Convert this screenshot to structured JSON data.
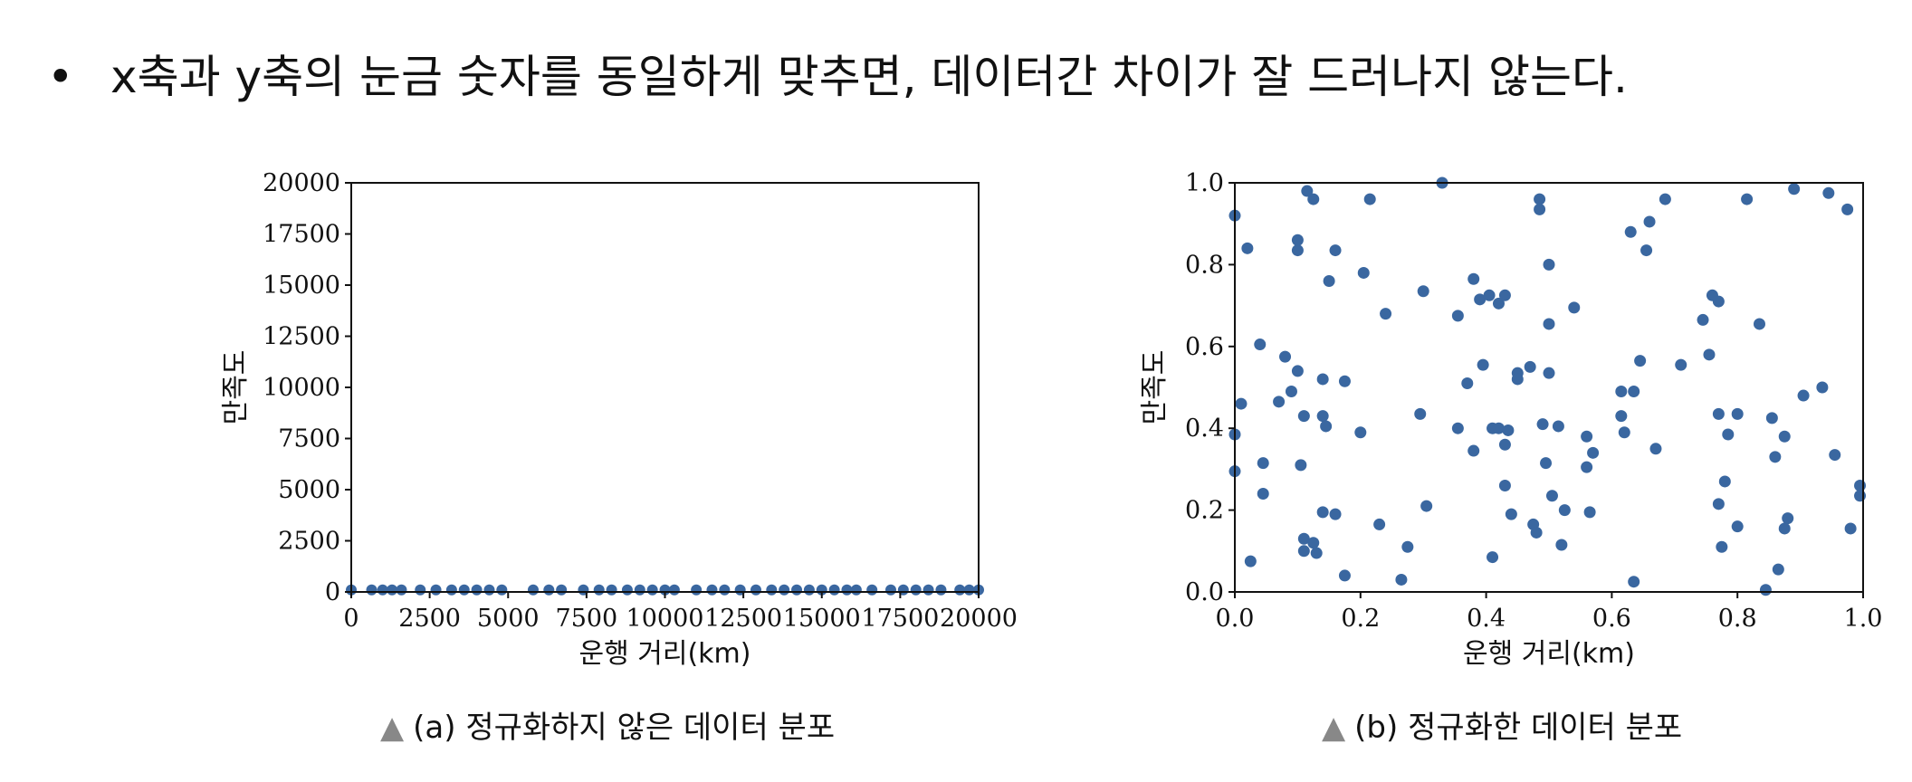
{
  "slide": {
    "bullet_symbol": "•",
    "bullet_text": "x축과 y축의 눈금 숫자를 동일하게 맞추면, 데이터간 차이가 잘 드러나지 않는다."
  },
  "captions": {
    "marker": "▲",
    "left": "(a) 정규화하지 않은 데이터 분포",
    "right": "(b) 정규화한 데이터 분포"
  },
  "colors": {
    "marker": "#3a67a0",
    "axis": "#111111"
  },
  "chart_data": [
    {
      "type": "scatter",
      "title": "",
      "xlabel": "운행 거리(km)",
      "ylabel": "만족도",
      "xlim": [
        0,
        20000
      ],
      "ylim": [
        0,
        20000
      ],
      "xticks": [
        "0",
        "2500",
        "5000",
        "7500",
        "10000",
        "12500",
        "15000",
        "17500",
        "20000"
      ],
      "yticks": [
        "0",
        "2500",
        "5000",
        "7500",
        "10000",
        "12500",
        "15000",
        "17500",
        "20000"
      ],
      "points": [
        [
          0,
          100
        ],
        [
          650,
          100
        ],
        [
          1000,
          100
        ],
        [
          1300,
          100
        ],
        [
          1600,
          100
        ],
        [
          2200,
          100
        ],
        [
          2700,
          100
        ],
        [
          3200,
          100
        ],
        [
          3600,
          100
        ],
        [
          4000,
          100
        ],
        [
          4400,
          100
        ],
        [
          4800,
          100
        ],
        [
          5800,
          100
        ],
        [
          6300,
          100
        ],
        [
          6700,
          100
        ],
        [
          7400,
          100
        ],
        [
          7900,
          100
        ],
        [
          8300,
          100
        ],
        [
          8800,
          100
        ],
        [
          9200,
          100
        ],
        [
          9600,
          100
        ],
        [
          10000,
          100
        ],
        [
          10300,
          100
        ],
        [
          11000,
          100
        ],
        [
          11500,
          100
        ],
        [
          11900,
          100
        ],
        [
          12400,
          100
        ],
        [
          12900,
          100
        ],
        [
          13400,
          100
        ],
        [
          13800,
          100
        ],
        [
          14200,
          100
        ],
        [
          14600,
          100
        ],
        [
          15000,
          100
        ],
        [
          15400,
          100
        ],
        [
          15800,
          100
        ],
        [
          16100,
          100
        ],
        [
          16600,
          100
        ],
        [
          17200,
          100
        ],
        [
          17600,
          100
        ],
        [
          18000,
          100
        ],
        [
          18400,
          100
        ],
        [
          18800,
          100
        ],
        [
          19400,
          100
        ],
        [
          19700,
          100
        ],
        [
          20000,
          100
        ]
      ]
    },
    {
      "type": "scatter",
      "title": "",
      "xlabel": "운행 거리(km)",
      "ylabel": "만족도",
      "xlim": [
        0,
        1
      ],
      "ylim": [
        0,
        1
      ],
      "xticks": [
        "0.0",
        "0.2",
        "0.4",
        "0.6",
        "0.8",
        "1.0"
      ],
      "yticks": [
        "0.0",
        "0.2",
        "0.4",
        "0.6",
        "0.8",
        "1.0"
      ],
      "points": [
        [
          0.0,
          0.92
        ],
        [
          0.0,
          0.385
        ],
        [
          0.0,
          0.295
        ],
        [
          0.01,
          0.46
        ],
        [
          0.02,
          0.84
        ],
        [
          0.025,
          0.075
        ],
        [
          0.04,
          0.605
        ],
        [
          0.045,
          0.315
        ],
        [
          0.045,
          0.24
        ],
        [
          0.07,
          0.465
        ],
        [
          0.08,
          0.575
        ],
        [
          0.09,
          0.49
        ],
        [
          0.1,
          0.86
        ],
        [
          0.1,
          0.835
        ],
        [
          0.1,
          0.54
        ],
        [
          0.105,
          0.31
        ],
        [
          0.11,
          0.43
        ],
        [
          0.11,
          0.13
        ],
        [
          0.11,
          0.1
        ],
        [
          0.115,
          0.98
        ],
        [
          0.125,
          0.96
        ],
        [
          0.125,
          0.12
        ],
        [
          0.13,
          0.095
        ],
        [
          0.14,
          0.52
        ],
        [
          0.14,
          0.43
        ],
        [
          0.14,
          0.195
        ],
        [
          0.145,
          0.405
        ],
        [
          0.15,
          0.76
        ],
        [
          0.16,
          0.835
        ],
        [
          0.16,
          0.19
        ],
        [
          0.175,
          0.515
        ],
        [
          0.175,
          0.04
        ],
        [
          0.2,
          0.39
        ],
        [
          0.205,
          0.78
        ],
        [
          0.215,
          0.96
        ],
        [
          0.23,
          0.165
        ],
        [
          0.24,
          0.68
        ],
        [
          0.265,
          0.03
        ],
        [
          0.275,
          0.11
        ],
        [
          0.295,
          0.435
        ],
        [
          0.3,
          0.735
        ],
        [
          0.305,
          0.21
        ],
        [
          0.33,
          1.0
        ],
        [
          0.355,
          0.675
        ],
        [
          0.355,
          0.4
        ],
        [
          0.37,
          0.51
        ],
        [
          0.38,
          0.345
        ],
        [
          0.38,
          0.765
        ],
        [
          0.39,
          0.715
        ],
        [
          0.395,
          0.555
        ],
        [
          0.405,
          0.725
        ],
        [
          0.41,
          0.4
        ],
        [
          0.41,
          0.085
        ],
        [
          0.42,
          0.4
        ],
        [
          0.42,
          0.705
        ],
        [
          0.43,
          0.725
        ],
        [
          0.43,
          0.36
        ],
        [
          0.43,
          0.26
        ],
        [
          0.435,
          0.395
        ],
        [
          0.44,
          0.19
        ],
        [
          0.45,
          0.535
        ],
        [
          0.45,
          0.52
        ],
        [
          0.47,
          0.55
        ],
        [
          0.475,
          0.165
        ],
        [
          0.48,
          0.145
        ],
        [
          0.485,
          0.96
        ],
        [
          0.485,
          0.935
        ],
        [
          0.49,
          0.41
        ],
        [
          0.495,
          0.315
        ],
        [
          0.5,
          0.8
        ],
        [
          0.5,
          0.655
        ],
        [
          0.5,
          0.535
        ],
        [
          0.505,
          0.235
        ],
        [
          0.515,
          0.405
        ],
        [
          0.52,
          0.115
        ],
        [
          0.525,
          0.2
        ],
        [
          0.54,
          0.695
        ],
        [
          0.56,
          0.38
        ],
        [
          0.56,
          0.305
        ],
        [
          0.565,
          0.195
        ],
        [
          0.57,
          0.34
        ],
        [
          0.615,
          0.49
        ],
        [
          0.615,
          0.43
        ],
        [
          0.62,
          0.39
        ],
        [
          0.63,
          0.88
        ],
        [
          0.635,
          0.49
        ],
        [
          0.635,
          0.025
        ],
        [
          0.645,
          0.565
        ],
        [
          0.655,
          0.835
        ],
        [
          0.66,
          0.905
        ],
        [
          0.67,
          0.35
        ],
        [
          0.685,
          0.96
        ],
        [
          0.71,
          0.555
        ],
        [
          0.745,
          0.665
        ],
        [
          0.755,
          0.58
        ],
        [
          0.76,
          0.725
        ],
        [
          0.77,
          0.71
        ],
        [
          0.77,
          0.435
        ],
        [
          0.77,
          0.215
        ],
        [
          0.775,
          0.11
        ],
        [
          0.78,
          0.27
        ],
        [
          0.785,
          0.385
        ],
        [
          0.8,
          0.16
        ],
        [
          0.8,
          0.435
        ],
        [
          0.815,
          0.96
        ],
        [
          0.835,
          0.655
        ],
        [
          0.845,
          0.005
        ],
        [
          0.855,
          0.425
        ],
        [
          0.86,
          0.33
        ],
        [
          0.865,
          0.055
        ],
        [
          0.875,
          0.38
        ],
        [
          0.875,
          0.155
        ],
        [
          0.88,
          0.18
        ],
        [
          0.89,
          0.985
        ],
        [
          0.905,
          0.48
        ],
        [
          0.935,
          0.5
        ],
        [
          0.945,
          0.975
        ],
        [
          0.955,
          0.335
        ],
        [
          0.975,
          0.935
        ],
        [
          0.98,
          0.155
        ],
        [
          0.995,
          0.26
        ],
        [
          0.995,
          0.235
        ]
      ]
    }
  ]
}
